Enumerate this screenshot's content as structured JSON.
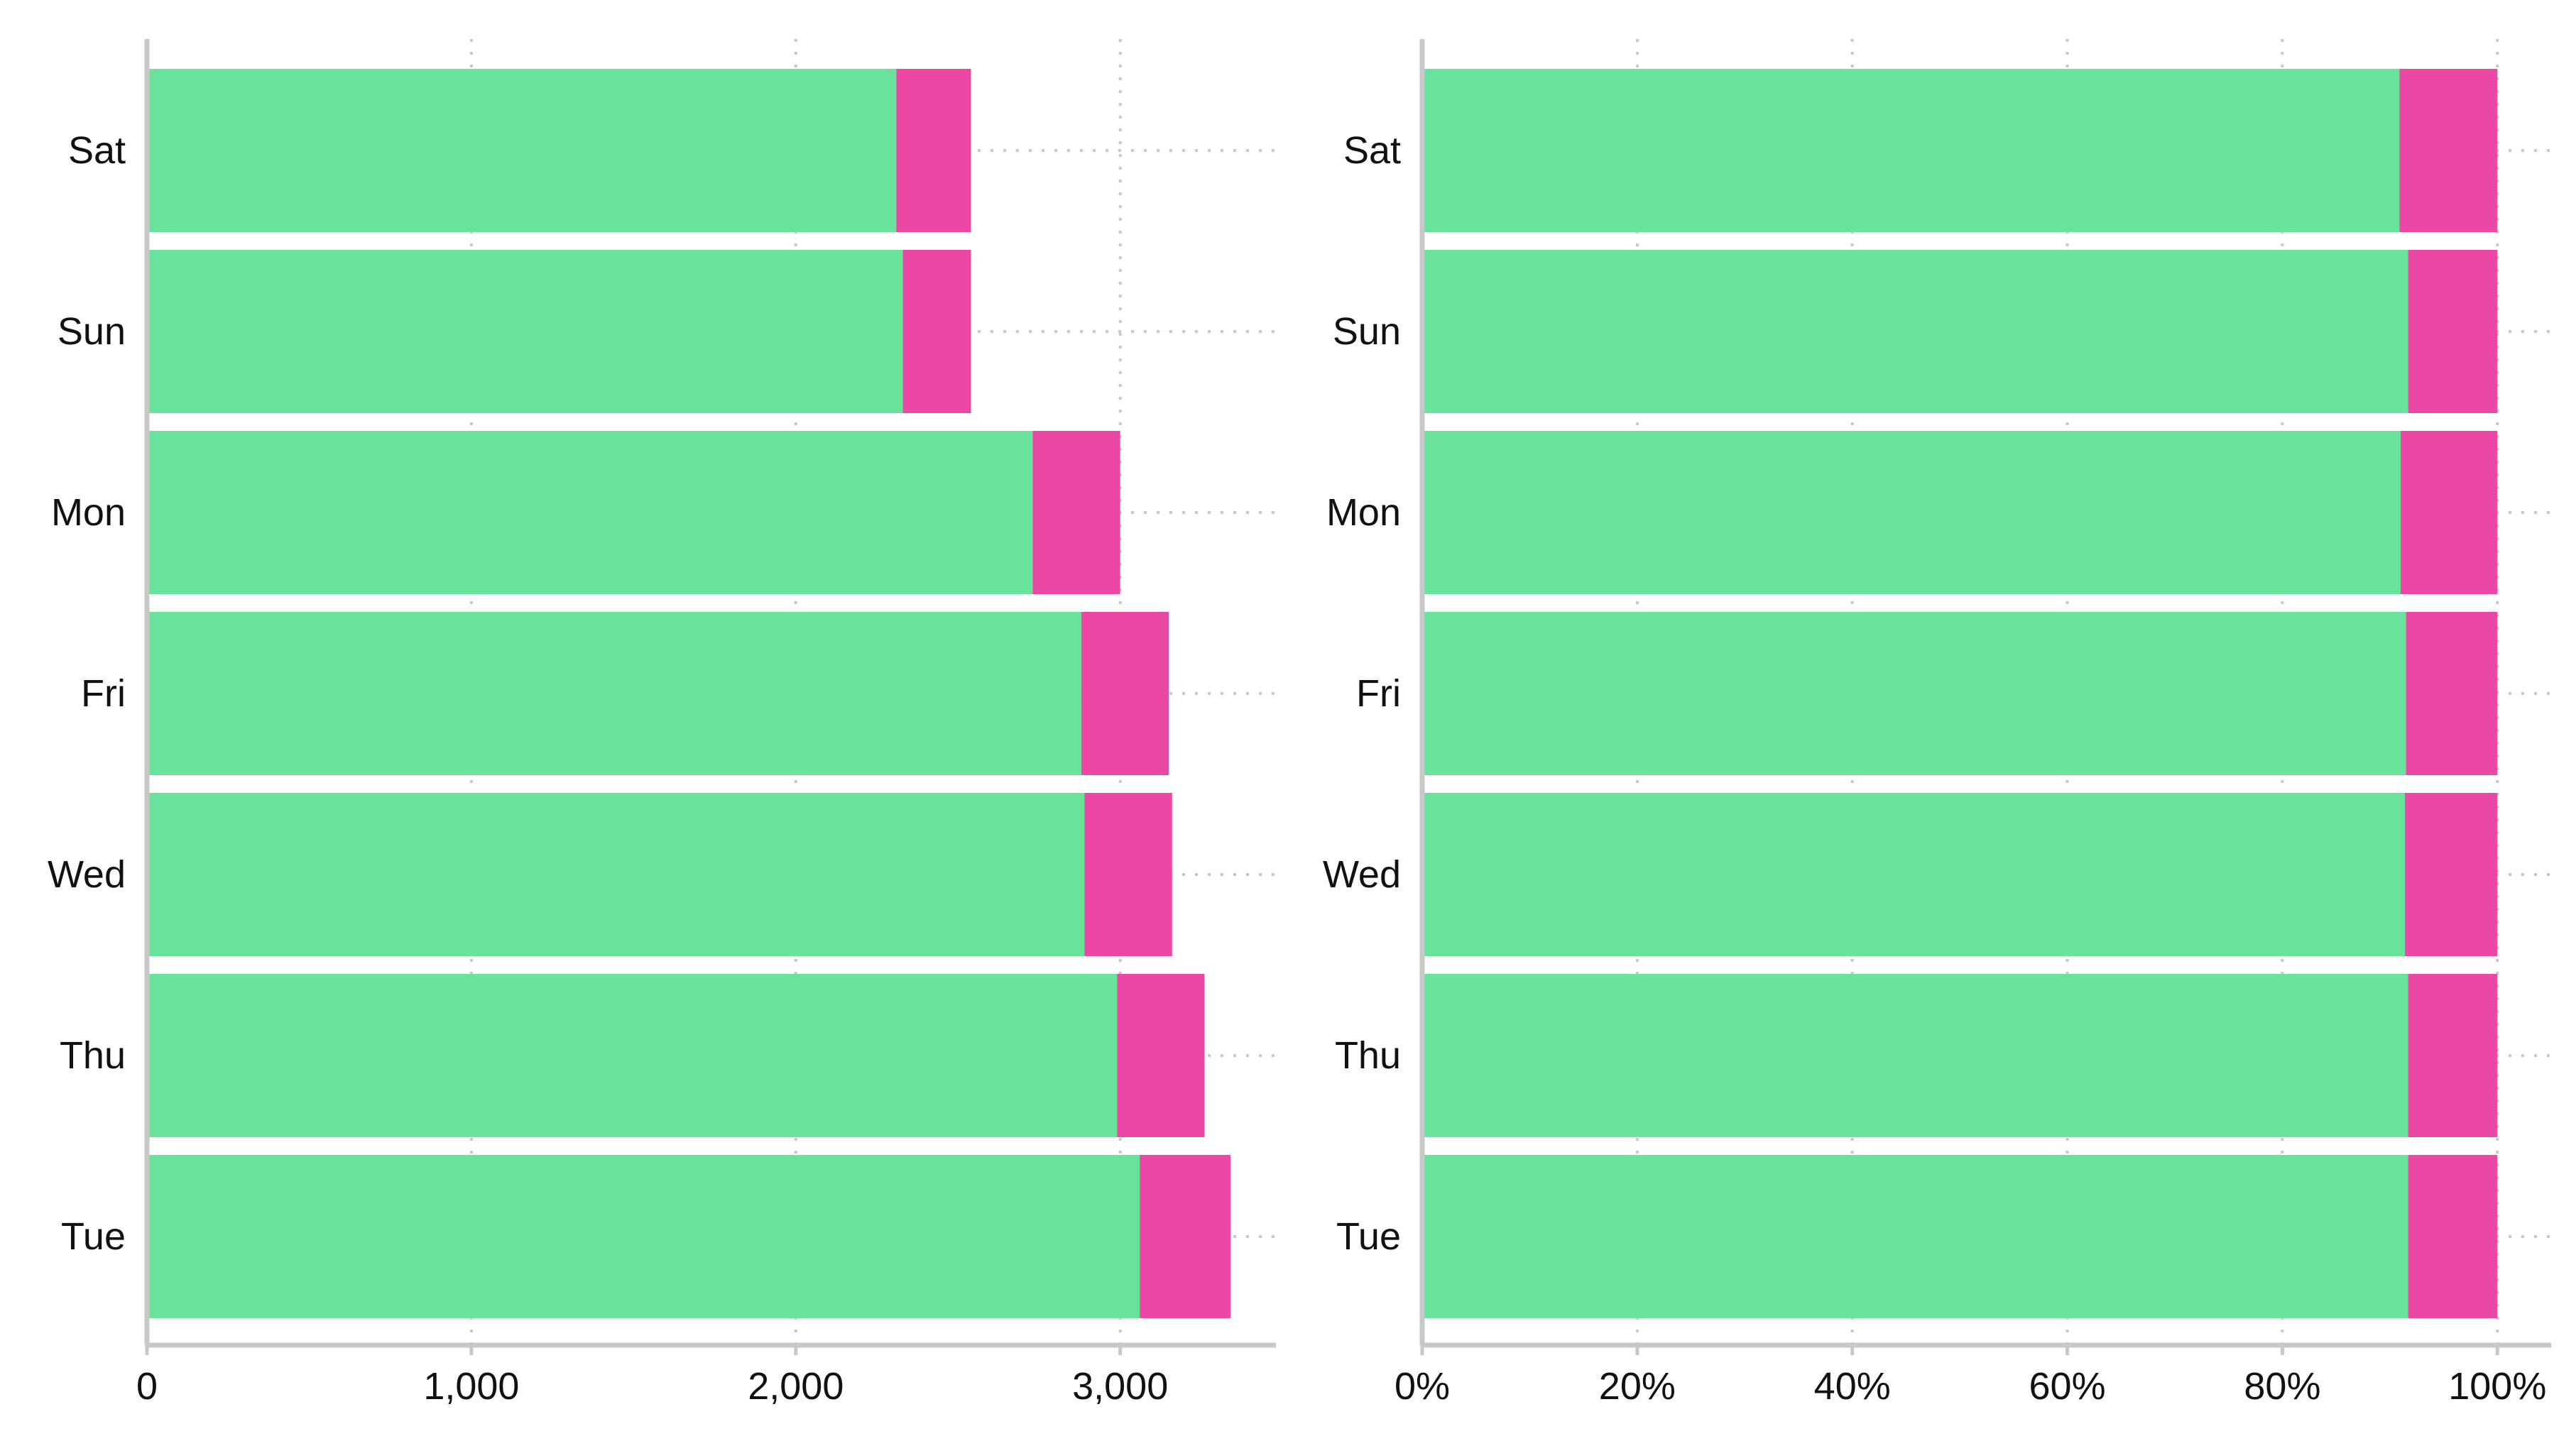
{
  "chart_data": [
    {
      "type": "bar",
      "orientation": "horizontal",
      "stacked": true,
      "title": "",
      "xlabel": "",
      "ylabel": "",
      "categories": [
        "Sat",
        "Sun",
        "Mon",
        "Fri",
        "Wed",
        "Thu",
        "Tue"
      ],
      "series": [
        {
          "values": [
            2310,
            2330,
            2730,
            2880,
            2890,
            2990,
            3060
          ]
        },
        {
          "values": [
            230,
            210,
            270,
            270,
            270,
            270,
            280
          ]
        }
      ],
      "xlim": [
        0,
        3480
      ],
      "xticks": [
        0,
        1000,
        2000,
        3000
      ],
      "xtick_labels": [
        "0",
        "1,000",
        "2,000",
        "3,000"
      ],
      "grid": "dotted",
      "colors": [
        "#69e29b",
        "#ea48a4"
      ]
    },
    {
      "type": "bar",
      "orientation": "horizontal",
      "stacked": true,
      "normalized": true,
      "title": "",
      "xlabel": "",
      "ylabel": "",
      "categories": [
        "Sat",
        "Sun",
        "Mon",
        "Fri",
        "Wed",
        "Thu",
        "Tue"
      ],
      "series": [
        {
          "values": [
            90.9,
            91.7,
            91.0,
            91.5,
            91.4,
            91.7,
            91.7
          ]
        },
        {
          "values": [
            9.1,
            8.3,
            9.0,
            8.5,
            8.6,
            8.3,
            8.3
          ]
        }
      ],
      "xlim": [
        0,
        105
      ],
      "xticks": [
        0,
        20,
        40,
        60,
        80,
        100
      ],
      "xtick_labels": [
        "0%",
        "20%",
        "40%",
        "60%",
        "80%",
        "100%"
      ],
      "grid": "dotted",
      "colors": [
        "#69e29b",
        "#ea48a4"
      ]
    }
  ]
}
